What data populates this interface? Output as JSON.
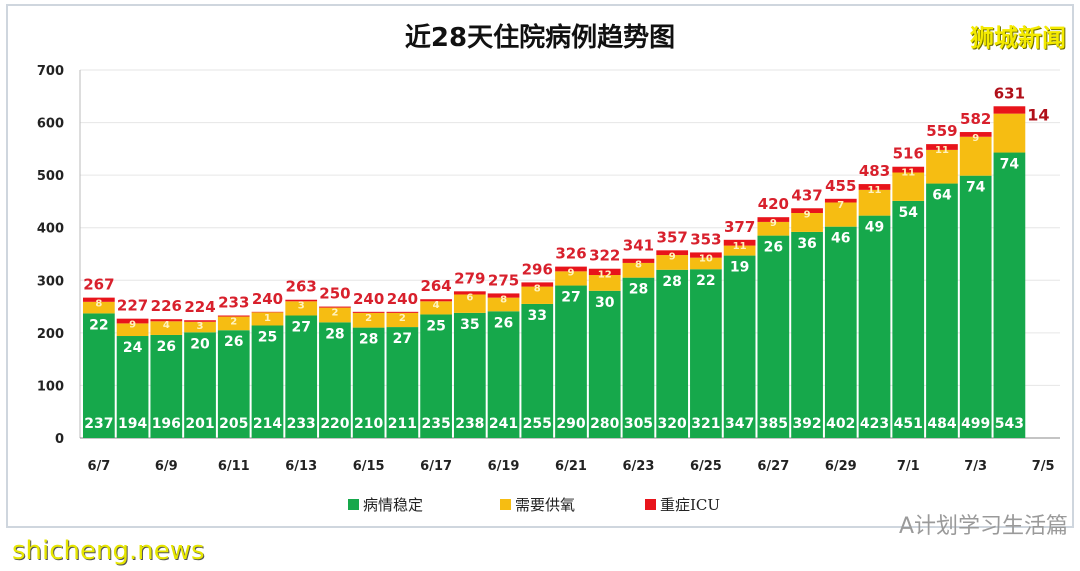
{
  "chart_data": {
    "type": "bar",
    "stacked": true,
    "title": "近28天住院病例趋势图",
    "categories": [
      "6/7",
      "6/8",
      "6/9",
      "6/10",
      "6/11",
      "6/12",
      "6/13",
      "6/14",
      "6/15",
      "6/16",
      "6/17",
      "6/18",
      "6/19",
      "6/20",
      "6/21",
      "6/22",
      "6/23",
      "6/24",
      "6/25",
      "6/26",
      "6/27",
      "6/28",
      "6/29",
      "6/30",
      "7/1",
      "7/2",
      "7/3",
      "7/4"
    ],
    "x_tick_labels": [
      "6/7",
      "6/9",
      "6/11",
      "6/13",
      "6/15",
      "6/17",
      "6/19",
      "6/21",
      "6/23",
      "6/25",
      "6/27",
      "6/29",
      "7/1",
      "7/3",
      "7/5"
    ],
    "series": [
      {
        "name": "病情稳定",
        "color": "#16a84b",
        "values": [
          237,
          194,
          196,
          201,
          205,
          214,
          233,
          220,
          210,
          211,
          235,
          238,
          241,
          255,
          290,
          280,
          305,
          320,
          321,
          347,
          385,
          392,
          402,
          423,
          451,
          484,
          499,
          543
        ]
      },
      {
        "name": "需要供氧",
        "color": "#f6bd12",
        "values": [
          22,
          24,
          26,
          20,
          26,
          25,
          27,
          28,
          28,
          27,
          25,
          35,
          26,
          33,
          27,
          30,
          28,
          28,
          22,
          19,
          26,
          36,
          46,
          49,
          54,
          64,
          74,
          74
        ]
      },
      {
        "name": "重症ICU",
        "color": "#e8141b",
        "values": [
          8,
          9,
          4,
          3,
          2,
          1,
          3,
          2,
          2,
          2,
          4,
          6,
          8,
          8,
          9,
          12,
          8,
          9,
          10,
          11,
          9,
          9,
          7,
          11,
          11,
          11,
          9,
          14
        ]
      }
    ],
    "totals": [
      267,
      227,
      226,
      224,
      233,
      240,
      263,
      250,
      240,
      240,
      264,
      279,
      275,
      296,
      326,
      322,
      341,
      357,
      353,
      377,
      420,
      437,
      455,
      483,
      516,
      559,
      582,
      631
    ],
    "ylim": [
      0,
      700
    ],
    "y_ticks": [
      0,
      100,
      200,
      300,
      400,
      500,
      600,
      700
    ],
    "grid": true,
    "legend": "bottom"
  },
  "watermarks": {
    "top_right": "狮城新闻",
    "bottom_left": "shicheng.news",
    "bottom_right": "A计划学习生活篇"
  }
}
